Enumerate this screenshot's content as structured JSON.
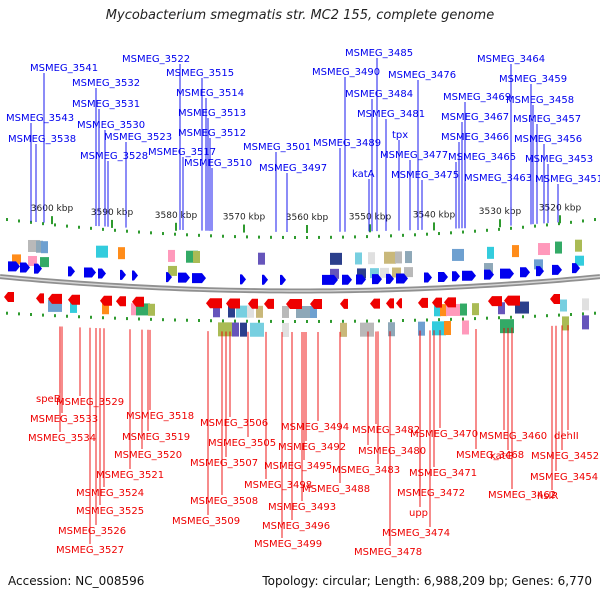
{
  "title": "Mycobacterium smegmatis str. MC2 155, complete genome",
  "footer": {
    "accession": "Accession: NC_008596",
    "topology": "Topology: circular; Length: 6,988,209 bp; Genes: 6,770"
  },
  "kbp_ticks": [
    "3600 kbp",
    "3590 kbp",
    "3580 kbp",
    "3570 kbp",
    "3560 kbp",
    "3550 kbp",
    "3540 kbp",
    "3530 kbp",
    "3520 kbp"
  ],
  "forward_labels": [
    "MSMEG_3541",
    "MSMEG_3532",
    "MSMEG_3531",
    "MSMEG_3543",
    "MSMEG_3530",
    "MSMEG_3538",
    "MSMEG_3528",
    "MSMEG_3522",
    "MSMEG_3515",
    "MSMEG_3514",
    "MSMEG_3513",
    "MSMEG_3523",
    "MSMEG_3512",
    "MSMEG_3517",
    "MSMEG_3510",
    "MSMEG_3501",
    "MSMEG_3497",
    "MSMEG_3485",
    "MSMEG_3490",
    "MSMEG_3476",
    "MSMEG_3484",
    "MSMEG_3481",
    "MSMEG_3489",
    "tpx",
    "katA",
    "MSMEG_3477",
    "MSMEG_3475",
    "MSMEG_3464",
    "MSMEG_3459",
    "MSMEG_3469",
    "MSMEG_3458",
    "MSMEG_3467",
    "MSMEG_3457",
    "MSMEG_3466",
    "MSMEG_3456",
    "MSMEG_3465",
    "MSMEG_3453",
    "MSMEG_3463",
    "MSMEG_3451"
  ],
  "reverse_labels": [
    "speB",
    "MSMEG_3529",
    "MSMEG_3533",
    "MSMEG_3534",
    "MSMEG_3518",
    "MSMEG_3519",
    "MSMEG_3520",
    "MSMEG_3521",
    "MSMEG_3524",
    "MSMEG_3525",
    "MSMEG_3526",
    "MSMEG_3527",
    "MSMEG_3506",
    "MSMEG_3505",
    "MSMEG_3507",
    "MSMEG_3508",
    "MSMEG_3509",
    "MSMEG_3499",
    "MSMEG_3498",
    "MSMEG_3496",
    "MSMEG_3494",
    "MSMEG_3492",
    "MSMEG_3495",
    "MSMEG_3493",
    "MSMEG_3488",
    "MSMEG_3482",
    "MSMEG_3480",
    "MSMEG_3483",
    "MSMEG_3470",
    "MSMEG_3471",
    "MSMEG_3472",
    "upp",
    "MSMEG_3474",
    "MSMEG_3478",
    "MSMEG_3468",
    "MSMEG_3460",
    "katG",
    "MSMEG_3462",
    "dehII",
    "MSMEG_3452",
    "MSMEG_3454",
    "hslR"
  ],
  "colors": {
    "forward": "#0000ee",
    "reverse": "#ee0000",
    "backbone": "#909090",
    "tick": "#2e9a2e"
  }
}
